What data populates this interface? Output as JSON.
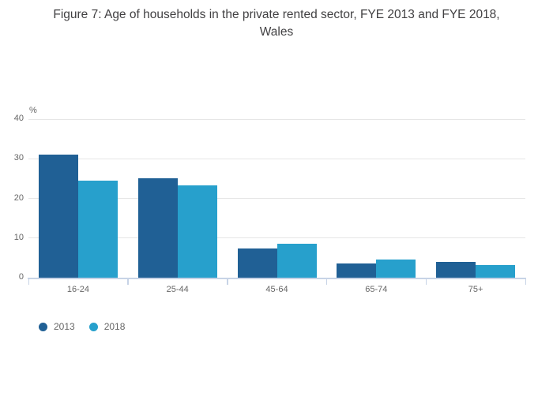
{
  "chart_data": {
    "type": "bar",
    "title": "Figure 7: Age of households in the private rented sector, FYE 2013 and FYE 2018, Wales",
    "categories": [
      "16-24",
      "25-44",
      "45-64",
      "65-74",
      "75+"
    ],
    "series": [
      {
        "name": "2013",
        "color": "#206095",
        "values": [
          31,
          25,
          7.3,
          3.5,
          4
        ]
      },
      {
        "name": "2018",
        "color": "#27a0cc",
        "values": [
          24.5,
          23.3,
          8.5,
          4.6,
          3.1
        ]
      }
    ],
    "xlabel": "",
    "ylabel": "%",
    "ylim": [
      0,
      40
    ],
    "y_ticks": [
      0,
      10,
      20,
      30,
      40
    ],
    "grid": true,
    "legend_position": "bottom-left",
    "colors": {
      "grid_line": "#e6e6e6",
      "axis_line": "#c7d3e6",
      "tick_label": "#666666",
      "title_text": "#414042"
    }
  }
}
